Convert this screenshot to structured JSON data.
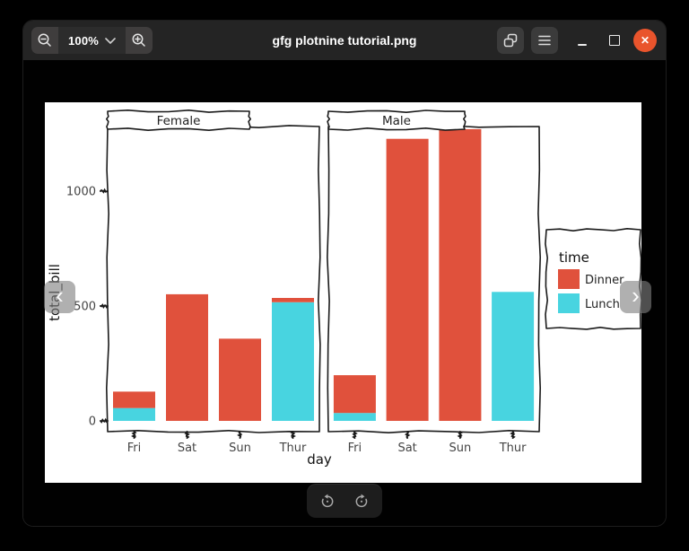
{
  "window": {
    "title": "gfg plotnine tutorial.png"
  },
  "toolbar": {
    "zoom_level": "100%"
  },
  "icons": {
    "close": "✕",
    "prev": "‹",
    "next": "›",
    "zoom_out": "magnifier-minus",
    "zoom_in": "magnifier-plus",
    "zoom_dropdown": "chevron-down",
    "gallery": "overlapping-windows",
    "menu": "hamburger",
    "minimize": "horizontal-bar",
    "maximize": "square-outline",
    "rotate_left": "arrow-circle-ccw",
    "rotate_right": "arrow-circle-cw"
  },
  "chart_data": {
    "type": "bar",
    "stacked": true,
    "style": "xkcd-sketch",
    "facet_by": "sex",
    "categories": [
      "Fri",
      "Sat",
      "Sun",
      "Thur"
    ],
    "facets": [
      {
        "label": "Female",
        "series": [
          {
            "name": "Dinner",
            "values": [
              71.5,
              551.1,
              357.7,
              18.8
            ]
          },
          {
            "name": "Lunch",
            "values": [
              55.8,
              0,
              0,
              516.1
            ]
          }
        ]
      },
      {
        "label": "Male",
        "series": [
          {
            "name": "Dinner",
            "values": [
              164.4,
              1227.4,
              1269.5,
              0
            ]
          },
          {
            "name": "Lunch",
            "values": [
              34.2,
              0,
              0,
              561.4
            ]
          }
        ]
      }
    ],
    "xlabel": "day",
    "ylabel": "total_bill",
    "yticks": [
      "0",
      "500",
      "1000"
    ],
    "ytick_values": [
      0,
      500,
      1000
    ],
    "ylim": [
      0,
      1281
    ],
    "grid": false,
    "legend": {
      "title": "time",
      "position": "right",
      "entries": [
        {
          "label": "Dinner",
          "color": "#e0513c"
        },
        {
          "label": "Lunch",
          "color": "#48d4e0"
        }
      ]
    },
    "colors": {
      "Dinner": "#e0513c",
      "Lunch": "#48d4e0"
    },
    "stroke_color": "#1a1a1a"
  }
}
